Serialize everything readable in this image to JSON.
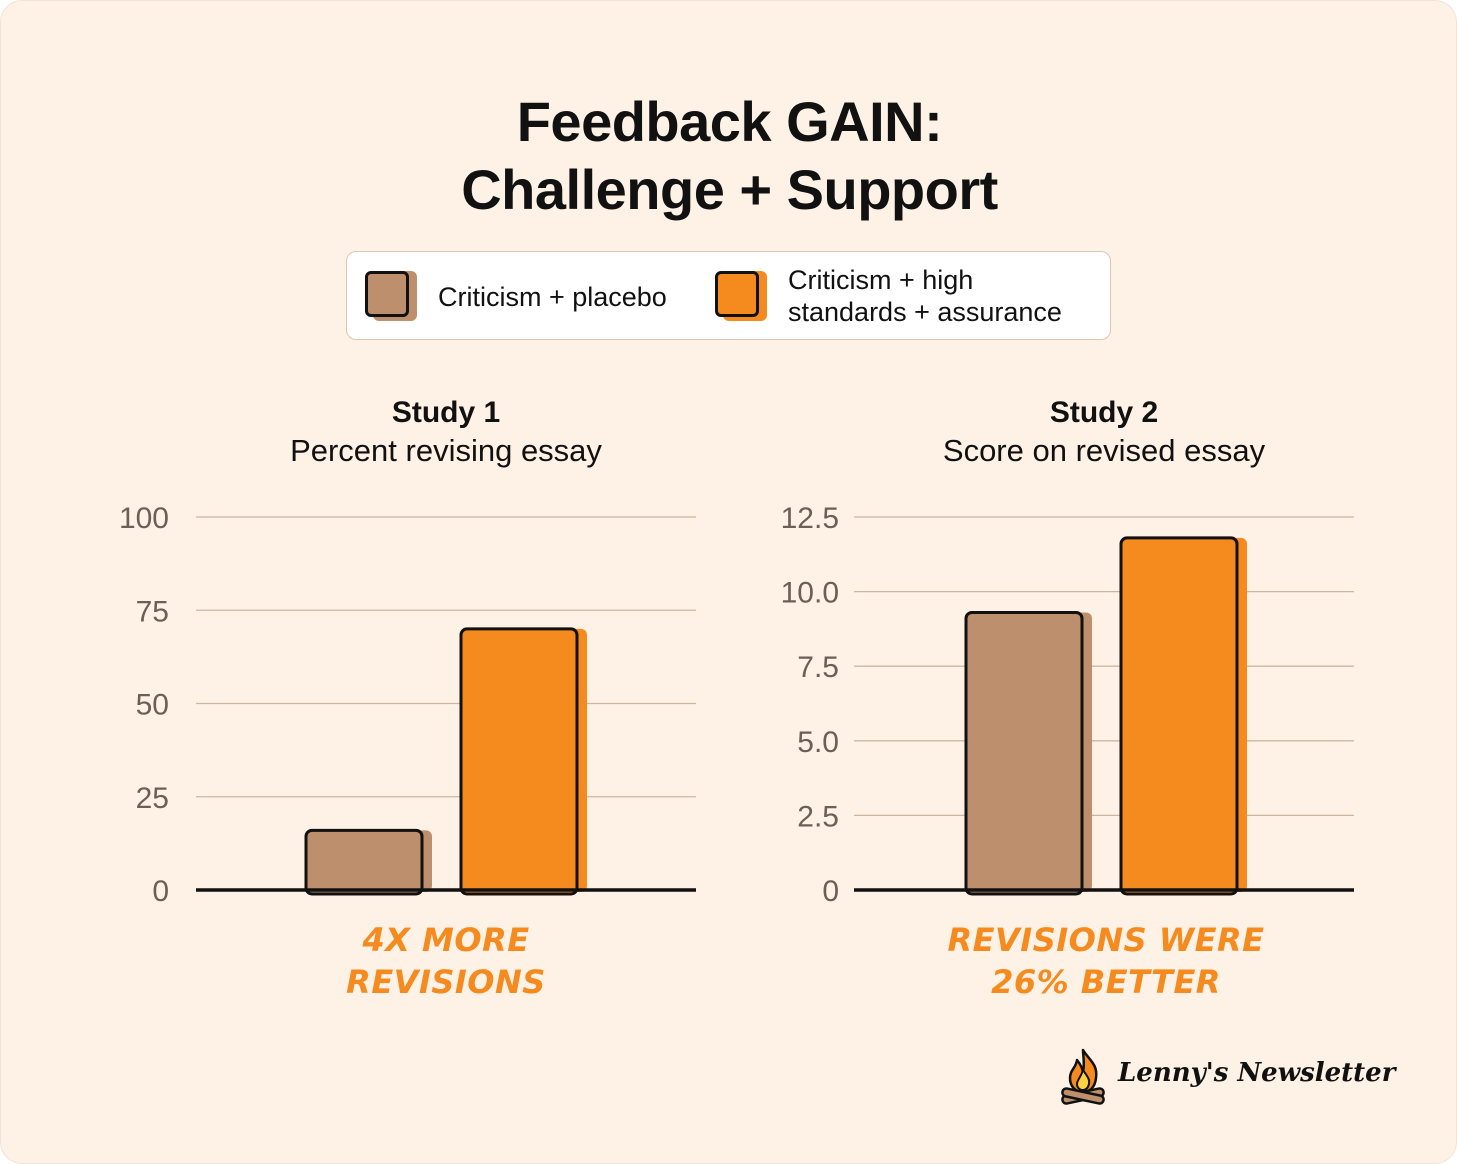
{
  "title_line1": "Feedback GAIN:",
  "title_line2": "Challenge + Support",
  "legend": [
    {
      "label": "Criticism + placebo",
      "color": "#BD8F6C"
    },
    {
      "label_line1": "Criticism + high",
      "label_line2": "standards + assurance",
      "color": "#F58A1F"
    }
  ],
  "colors": {
    "background": "#FEF1E5",
    "placebo": "#BD8F6C",
    "assurance": "#F58A1F",
    "callout": "#F58A1F"
  },
  "chart_data": [
    {
      "type": "bar",
      "title": "Study 1",
      "subtitle": "Percent revising essay",
      "categories": [
        "Criticism + placebo",
        "Criticism + high standards + assurance"
      ],
      "values": [
        16,
        70
      ],
      "ylim": [
        0,
        100
      ],
      "yticks": [
        "100",
        "75",
        "50",
        "25",
        "0"
      ],
      "ytick_values": [
        100,
        75,
        50,
        25,
        0
      ],
      "grid": true,
      "callout_line1": "4X MORE",
      "callout_line2": "REVISIONS"
    },
    {
      "type": "bar",
      "title": "Study 2",
      "subtitle": "Score on revised essay",
      "categories": [
        "Criticism + placebo",
        "Criticism + high standards + assurance"
      ],
      "values": [
        9.3,
        11.8
      ],
      "ylim": [
        0,
        12.5
      ],
      "yticks": [
        "12.5",
        "10.0",
        "7.5",
        "5.0",
        "2.5",
        "0"
      ],
      "ytick_values": [
        12.5,
        10.0,
        7.5,
        5.0,
        2.5,
        0
      ],
      "grid": true,
      "callout_line1": "REVISIONS WERE",
      "callout_line2": "26% BETTER"
    }
  ],
  "brand": {
    "name": "Lenny's Newsletter",
    "icon": "campfire-icon"
  }
}
